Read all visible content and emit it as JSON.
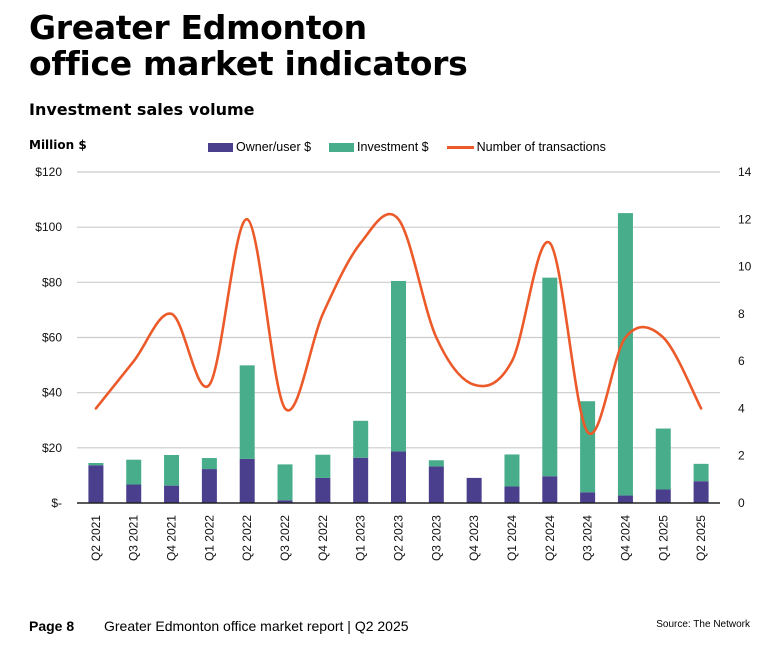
{
  "page": {
    "title_line1": "Greater Edmonton",
    "title_line2": "office market indicators",
    "subtitle": "Investment sales volume",
    "unit_label": "Million $",
    "footer_page": "Page 8",
    "footer_report": "Greater Edmonton office market report | Q2 2025",
    "footer_source": "Source: The Network"
  },
  "colors": {
    "owner_user": "#4a3f8c",
    "investment": "#48ad8a",
    "transactions": "#ec5a2a",
    "grid": "#cccccc",
    "axis": "#222222"
  },
  "chart_data": {
    "type": "bar",
    "title": "Investment sales volume",
    "ylabel": "Million $",
    "y2label": "Number of transactions",
    "ylim": [
      0,
      120
    ],
    "y2lim": [
      0,
      14
    ],
    "yticks": [
      "$-",
      "$20",
      "$40",
      "$60",
      "$80",
      "$100",
      "$120"
    ],
    "y2ticks": [
      "0",
      "2",
      "4",
      "6",
      "8",
      "10",
      "12",
      "14"
    ],
    "grid": true,
    "legend_position": "top",
    "categories": [
      "Q2 2021",
      "Q3 2021",
      "Q4 2021",
      "Q1 2022",
      "Q2 2022",
      "Q3 2022",
      "Q4 2022",
      "Q1 2023",
      "Q2 2023",
      "Q3 2023",
      "Q4 2023",
      "Q1 2024",
      "Q2 2024",
      "Q3 2024",
      "Q4 2024",
      "Q1 2025",
      "Q2 2025"
    ],
    "series": [
      {
        "name": "Owner/user $",
        "type": "stacked-bar",
        "axis": "left",
        "values": [
          13.7,
          6.7,
          6.3,
          12.3,
          16.0,
          1.0,
          9.1,
          16.4,
          18.7,
          13.3,
          9.1,
          6.0,
          9.7,
          3.9,
          2.7,
          4.9,
          7.9
        ]
      },
      {
        "name": "Investment $",
        "type": "stacked-bar",
        "axis": "left",
        "values": [
          0.8,
          9.0,
          11.1,
          4.0,
          33.9,
          13.0,
          8.4,
          13.4,
          61.8,
          2.2,
          0.0,
          11.6,
          72.0,
          33.0,
          102.4,
          22.1,
          6.3
        ]
      },
      {
        "name": "Number of transactions",
        "type": "line",
        "axis": "right",
        "values": [
          4,
          6,
          8,
          5,
          12,
          4,
          8,
          11,
          12,
          7,
          5,
          6,
          11,
          3,
          7,
          7,
          4
        ]
      }
    ]
  }
}
